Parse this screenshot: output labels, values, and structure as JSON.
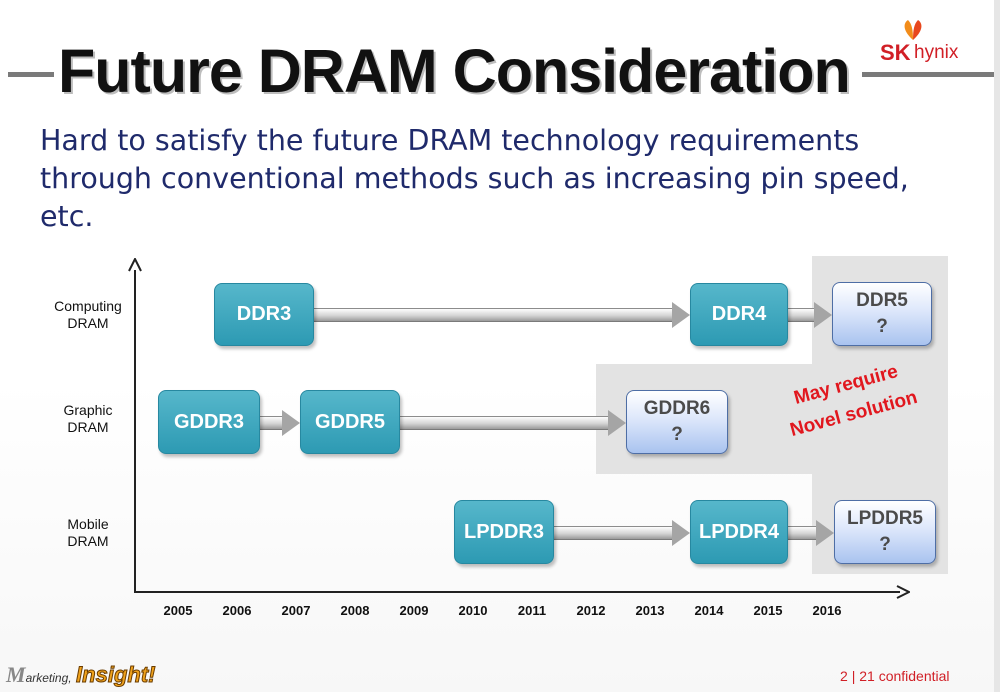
{
  "slide": {
    "title_part1": "Future DRAM",
    "title_part2": "Consideration",
    "subtitle": "Hard to satisfy the future DRAM technology requirements through conventional methods such as increasing pin speed, etc."
  },
  "logo": {
    "sk": "SK",
    "hynix": "hynix"
  },
  "diagram": {
    "rows": [
      {
        "label_line1": "Computing",
        "label_line2": "DRAM"
      },
      {
        "label_line1": "Graphic",
        "label_line2": "DRAM"
      },
      {
        "label_line1": "Mobile",
        "label_line2": "DRAM"
      }
    ],
    "years": [
      "2005",
      "2006",
      "2007",
      "2008",
      "2009",
      "2010",
      "2011",
      "2012",
      "2013",
      "2014",
      "2015",
      "2016"
    ],
    "nodes": {
      "ddr3": "DDR3",
      "ddr4": "DDR4",
      "ddr5": {
        "name": "DDR5",
        "status": "?"
      },
      "gddr3": "GDDR3",
      "gddr5": "GDDR5",
      "gddr6": {
        "name": "GDDR6",
        "status": "?"
      },
      "lpddr3": "LPDDR3",
      "lpddr4": "LPDDR4",
      "lpddr5": {
        "name": "LPDDR5",
        "status": "?"
      }
    },
    "callout_line1": "May require",
    "callout_line2": "Novel solution"
  },
  "footer": {
    "brand_m": "M",
    "brand_arketing": "arketing,",
    "brand_insight": "Insight!",
    "page_current": "2",
    "page_separator": "|",
    "page_total": "21",
    "classification": "confidential"
  },
  "colors": {
    "title": "#111111",
    "subtitle": "#1f2a6b",
    "box_fill": "#2d9ab3",
    "future_box_fill": "#a9c3ef",
    "highlight_panel": "#e3e3e3",
    "callout": "#e1171e",
    "brand_red": "#d11f26"
  }
}
